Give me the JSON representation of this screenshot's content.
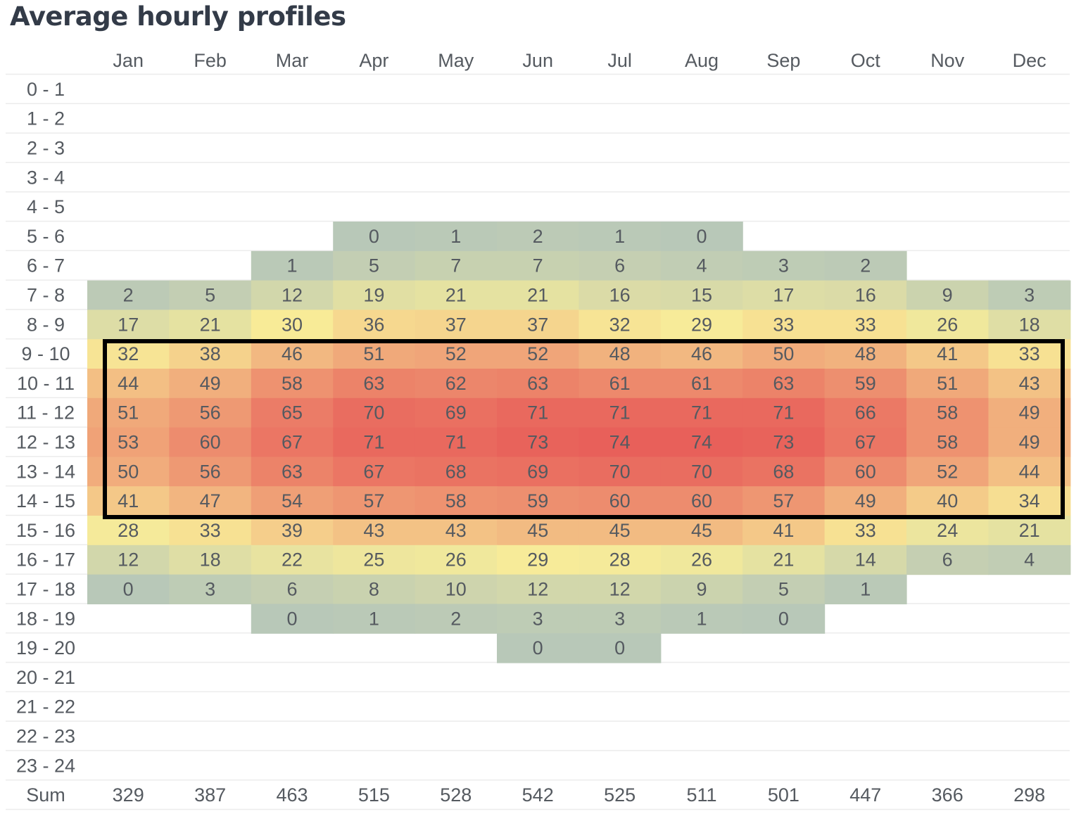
{
  "title": "Average hourly profiles",
  "chart_data": {
    "type": "heatmap",
    "title": "Average hourly profiles",
    "columns": [
      "Jan",
      "Feb",
      "Mar",
      "Apr",
      "May",
      "Jun",
      "Jul",
      "Aug",
      "Sep",
      "Oct",
      "Nov",
      "Dec"
    ],
    "rows": [
      "0 - 1",
      "1 - 2",
      "2 - 3",
      "3 - 4",
      "4 - 5",
      "5 - 6",
      "6 - 7",
      "7 - 8",
      "8 - 9",
      "9 - 10",
      "10 - 11",
      "11 - 12",
      "12 - 13",
      "13 - 14",
      "14 - 15",
      "15 - 16",
      "16 - 17",
      "17 - 18",
      "18 - 19",
      "19 - 20",
      "20 - 21",
      "21 - 22",
      "22 - 23",
      "23 - 24"
    ],
    "values": [
      [
        null,
        null,
        null,
        null,
        null,
        null,
        null,
        null,
        null,
        null,
        null,
        null
      ],
      [
        null,
        null,
        null,
        null,
        null,
        null,
        null,
        null,
        null,
        null,
        null,
        null
      ],
      [
        null,
        null,
        null,
        null,
        null,
        null,
        null,
        null,
        null,
        null,
        null,
        null
      ],
      [
        null,
        null,
        null,
        null,
        null,
        null,
        null,
        null,
        null,
        null,
        null,
        null
      ],
      [
        null,
        null,
        null,
        null,
        null,
        null,
        null,
        null,
        null,
        null,
        null,
        null
      ],
      [
        null,
        null,
        null,
        0,
        1,
        2,
        1,
        0,
        null,
        null,
        null,
        null
      ],
      [
        null,
        null,
        1,
        5,
        7,
        7,
        6,
        4,
        3,
        2,
        null,
        null
      ],
      [
        2,
        5,
        12,
        19,
        21,
        21,
        16,
        15,
        17,
        16,
        9,
        3
      ],
      [
        17,
        21,
        30,
        36,
        37,
        37,
        32,
        29,
        33,
        33,
        26,
        18
      ],
      [
        32,
        38,
        46,
        51,
        52,
        52,
        48,
        46,
        50,
        48,
        41,
        33
      ],
      [
        44,
        49,
        58,
        63,
        62,
        63,
        61,
        61,
        63,
        59,
        51,
        43
      ],
      [
        51,
        56,
        65,
        70,
        69,
        71,
        71,
        71,
        71,
        66,
        58,
        49
      ],
      [
        53,
        60,
        67,
        71,
        71,
        73,
        74,
        74,
        73,
        67,
        58,
        49
      ],
      [
        50,
        56,
        63,
        67,
        68,
        69,
        70,
        70,
        68,
        60,
        52,
        44
      ],
      [
        41,
        47,
        54,
        57,
        58,
        59,
        60,
        60,
        57,
        49,
        40,
        34
      ],
      [
        28,
        33,
        39,
        43,
        43,
        45,
        45,
        45,
        41,
        33,
        24,
        21
      ],
      [
        12,
        18,
        22,
        25,
        26,
        29,
        28,
        26,
        21,
        14,
        6,
        4
      ],
      [
        0,
        3,
        6,
        8,
        10,
        12,
        12,
        9,
        5,
        1,
        null,
        null
      ],
      [
        null,
        null,
        0,
        1,
        2,
        3,
        3,
        1,
        0,
        null,
        null,
        null
      ],
      [
        null,
        null,
        null,
        null,
        null,
        0,
        0,
        null,
        null,
        null,
        null,
        null
      ],
      [
        null,
        null,
        null,
        null,
        null,
        null,
        null,
        null,
        null,
        null,
        null,
        null
      ],
      [
        null,
        null,
        null,
        null,
        null,
        null,
        null,
        null,
        null,
        null,
        null,
        null
      ],
      [
        null,
        null,
        null,
        null,
        null,
        null,
        null,
        null,
        null,
        null,
        null,
        null
      ],
      [
        null,
        null,
        null,
        null,
        null,
        null,
        null,
        null,
        null,
        null,
        null,
        null
      ]
    ],
    "sum_label": "Sum",
    "sums": [
      329,
      387,
      463,
      515,
      528,
      542,
      525,
      511,
      501,
      447,
      366,
      298
    ],
    "color_scale": {
      "low": "#b8c8b8",
      "mid": "#f8ec98",
      "high": "#e8605a",
      "min": 0,
      "max": 74
    },
    "highlight": {
      "rows": [
        "9 - 10",
        "14 - 15"
      ],
      "columns": [
        "Jan",
        "Dec"
      ],
      "color": "#000000"
    }
  }
}
